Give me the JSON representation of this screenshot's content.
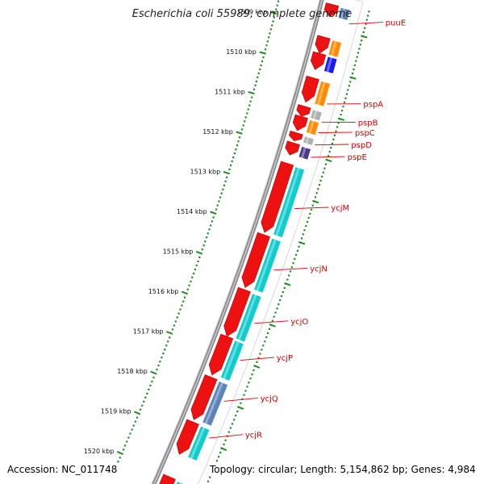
{
  "title": "Escherichia coli 55989, complete genome",
  "footer": {
    "accession": "Accession: NC_011748",
    "summary": "Topology: circular; Length: 5,154,862 bp; Genes: 4,984"
  },
  "colors": {
    "backbone": "#8c8c8c",
    "tick": "#228b22",
    "label_line": "#e00000",
    "label_text": "#d00000",
    "gene_red": "#ee1111",
    "cog_orange": "#ff8c00",
    "cog_green": "#33cc33",
    "cog_blue": "#1a1aee",
    "cog_cyan": "#11cccc",
    "cog_purple": "#4b3a8c",
    "cog_steel": "#5b84b8",
    "cog_gray": "#b0b0b0"
  },
  "scale_labels": [
    {
      "kbp": 1509,
      "text": "1509 kbp"
    },
    {
      "kbp": 1510,
      "text": "1510 kbp"
    },
    {
      "kbp": 1511,
      "text": "1511 kbp"
    },
    {
      "kbp": 1512,
      "text": "1512 kbp"
    },
    {
      "kbp": 1513,
      "text": "1513 kbp"
    },
    {
      "kbp": 1514,
      "text": "1514 kbp"
    },
    {
      "kbp": 1515,
      "text": "1515 kbp"
    },
    {
      "kbp": 1516,
      "text": "1516 kbp"
    },
    {
      "kbp": 1517,
      "text": "1517 kbp"
    },
    {
      "kbp": 1518,
      "text": "1518 kbp"
    },
    {
      "kbp": 1519,
      "text": "1519 kbp"
    },
    {
      "kbp": 1520,
      "text": "1520 kbp"
    }
  ],
  "gene_labels": [
    {
      "name": "puuE",
      "kbp": 1508.8
    },
    {
      "name": "pspA",
      "kbp": 1510.75
    },
    {
      "name": "pspB",
      "kbp": 1511.2
    },
    {
      "name": "pspC",
      "kbp": 1511.45
    },
    {
      "name": "pspD",
      "kbp": 1511.75
    },
    {
      "name": "pspE",
      "kbp": 1512.05
    },
    {
      "name": "ycjM",
      "kbp": 1513.3
    },
    {
      "name": "ycjN",
      "kbp": 1514.8
    },
    {
      "name": "ycjO",
      "kbp": 1516.1
    },
    {
      "name": "ycjP",
      "kbp": 1517.0
    },
    {
      "name": "ycjQ",
      "kbp": 1518.0
    },
    {
      "name": "ycjR",
      "kbp": 1518.9
    }
  ],
  "genes": [
    {
      "start": 1508.45,
      "end": 1508.75,
      "cog": "cog_steel",
      "dir": -1
    },
    {
      "start": 1509.25,
      "end": 1509.65,
      "cog": "cog_orange",
      "dir": -1
    },
    {
      "start": 1509.65,
      "end": 1510.05,
      "cog": "cog_blue",
      "dir": -1
    },
    {
      "start": 1510.25,
      "end": 1510.85,
      "cog": "cog_orange",
      "dir": -1
    },
    {
      "start": 1510.95,
      "end": 1511.2,
      "cog": "cog_gray",
      "dir": -1
    },
    {
      "start": 1511.2,
      "end": 1511.55,
      "cog": "cog_orange",
      "dir": -1
    },
    {
      "start": 1511.6,
      "end": 1511.8,
      "cog": "cog_gray",
      "dir": -1
    },
    {
      "start": 1511.85,
      "end": 1512.15,
      "cog": "cog_purple",
      "dir": -1
    },
    {
      "start": 1512.35,
      "end": 1514.05,
      "cog": "cog_cyan",
      "dir": -1
    },
    {
      "start": 1514.1,
      "end": 1515.4,
      "cog": "cog_cyan",
      "dir": -1
    },
    {
      "start": 1515.45,
      "end": 1516.6,
      "cog": "cog_cyan",
      "dir": -1
    },
    {
      "start": 1516.6,
      "end": 1517.55,
      "cog": "cog_cyan",
      "dir": -1
    },
    {
      "start": 1517.6,
      "end": 1518.65,
      "cog": "cog_steel",
      "dir": -1
    },
    {
      "start": 1518.7,
      "end": 1519.5,
      "cog": "cog_cyan",
      "dir": -1
    },
    {
      "start": 1520.05,
      "end": 1520.6,
      "cog": "cog_cyan",
      "dir": -1
    }
  ]
}
